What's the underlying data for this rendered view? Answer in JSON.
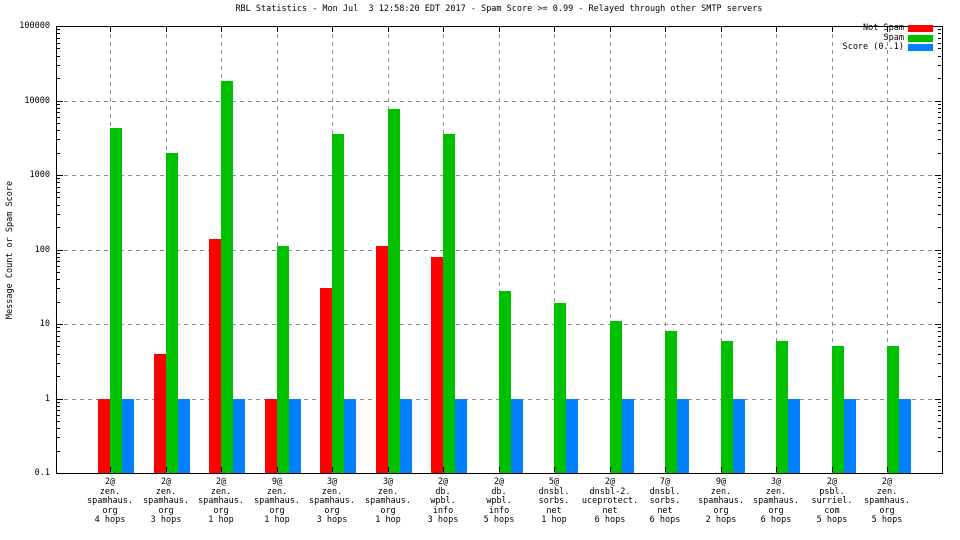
{
  "chart_data": {
    "type": "bar",
    "title": "RBL Statistics - Mon Jul  3 12:58:20 EDT 2017 - Spam Score >= 0.99 - Relayed through other SMTP servers",
    "ylabel": "Message Count or Spam Score",
    "y_scale": "log",
    "ylim": [
      0.1,
      100000
    ],
    "y_ticks": [
      "100000",
      "10000",
      "1000",
      "100",
      "10",
      "1",
      "0.1"
    ],
    "grid": true,
    "legend_position": "top-right-inside",
    "background_color": "#ffffff",
    "grid_color": "#8f8f8f",
    "categories": [
      [
        "2@",
        "zen.",
        "spamhaus.",
        "org",
        "4 hops"
      ],
      [
        "2@",
        "zen.",
        "spamhaus.",
        "org",
        "3 hops"
      ],
      [
        "2@",
        "zen.",
        "spamhaus.",
        "org",
        "1 hop"
      ],
      [
        "9@",
        "zen.",
        "spamhaus.",
        "org",
        "1 hop"
      ],
      [
        "3@",
        "zen.",
        "spamhaus.",
        "org",
        "3 hops"
      ],
      [
        "3@",
        "zen.",
        "spamhaus.",
        "org",
        "1 hop"
      ],
      [
        "2@",
        "db.",
        "wpbl.",
        "info",
        "3 hops"
      ],
      [
        "2@",
        "db.",
        "wpbl.",
        "info",
        "5 hops"
      ],
      [
        "5@",
        "dnsbl.",
        "sorbs.",
        "net",
        "1 hop"
      ],
      [
        "2@",
        "dnsbl-2.",
        "uceprotect.",
        "net",
        "6 hops"
      ],
      [
        "7@",
        "dnsbl.",
        "sorbs.",
        "net",
        "6 hops"
      ],
      [
        "9@",
        "zen.",
        "spamhaus.",
        "org",
        "2 hops"
      ],
      [
        "3@",
        "zen.",
        "spamhaus.",
        "org",
        "6 hops"
      ],
      [
        "2@",
        "psbl.",
        "surriel.",
        "com",
        "5 hops"
      ],
      [
        "2@",
        "zen.",
        "spamhaus.",
        "org",
        "5 hops"
      ]
    ],
    "series": [
      {
        "name": "Not Spam",
        "color": "#ff0000",
        "values": [
          1,
          4,
          140,
          1,
          30,
          110,
          80,
          null,
          null,
          null,
          null,
          null,
          null,
          null,
          null
        ]
      },
      {
        "name": "Spam",
        "color": "#00c000",
        "values": [
          4300,
          2000,
          18000,
          110,
          3500,
          7700,
          3600,
          28,
          19,
          11,
          8,
          6,
          6,
          5,
          5
        ]
      },
      {
        "name": "Score (0..1)",
        "color": "#0080ff",
        "values": [
          1,
          1,
          1,
          1,
          1,
          1,
          1,
          1,
          1,
          1,
          1,
          1,
          1,
          1,
          1
        ]
      }
    ]
  }
}
